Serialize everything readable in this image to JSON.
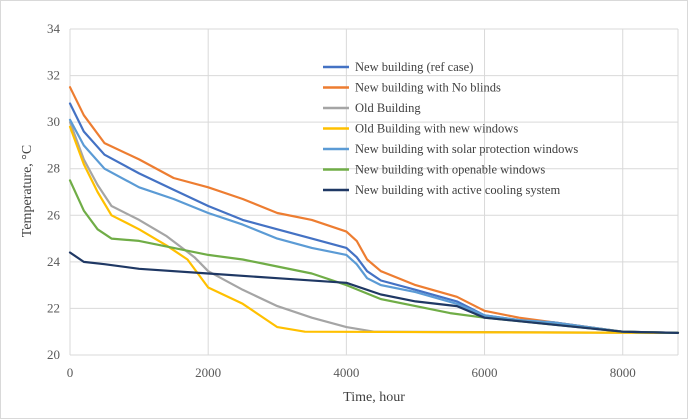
{
  "chart_data": {
    "type": "line",
    "title": "",
    "xlabel": "Time, hour",
    "ylabel": "Temperature, °C",
    "xlim": [
      0,
      8800
    ],
    "ylim": [
      20,
      34
    ],
    "xticks": [
      0,
      2000,
      4000,
      6000,
      8000
    ],
    "yticks": [
      20,
      22,
      24,
      26,
      28,
      30,
      32,
      34
    ],
    "grid": true,
    "legend_position": "top-right",
    "series": [
      {
        "name": "New building (ref case)",
        "color": "#4472C4",
        "points": [
          [
            0,
            30.8
          ],
          [
            200,
            29.6
          ],
          [
            500,
            28.6
          ],
          [
            1000,
            27.8
          ],
          [
            1500,
            27.1
          ],
          [
            2000,
            26.4
          ],
          [
            2500,
            25.8
          ],
          [
            3000,
            25.4
          ],
          [
            3500,
            25.0
          ],
          [
            4000,
            24.6
          ],
          [
            4150,
            24.2
          ],
          [
            4300,
            23.6
          ],
          [
            4500,
            23.2
          ],
          [
            5000,
            22.8
          ],
          [
            5600,
            22.3
          ],
          [
            6000,
            21.7
          ],
          [
            6500,
            21.5
          ],
          [
            7000,
            21.4
          ],
          [
            7500,
            21.2
          ],
          [
            8000,
            21.0
          ],
          [
            8800,
            20.95
          ]
        ]
      },
      {
        "name": "New building with No blinds",
        "color": "#ED7D31",
        "points": [
          [
            0,
            31.5
          ],
          [
            200,
            30.3
          ],
          [
            500,
            29.1
          ],
          [
            1000,
            28.4
          ],
          [
            1500,
            27.6
          ],
          [
            2000,
            27.2
          ],
          [
            2500,
            26.7
          ],
          [
            3000,
            26.1
          ],
          [
            3500,
            25.8
          ],
          [
            4000,
            25.3
          ],
          [
            4150,
            24.9
          ],
          [
            4300,
            24.1
          ],
          [
            4500,
            23.6
          ],
          [
            5000,
            23.0
          ],
          [
            5600,
            22.5
          ],
          [
            6000,
            21.9
          ],
          [
            6500,
            21.6
          ],
          [
            7000,
            21.4
          ],
          [
            7500,
            21.2
          ],
          [
            8000,
            21.0
          ],
          [
            8800,
            20.95
          ]
        ]
      },
      {
        "name": "Old Building",
        "color": "#A5A5A5",
        "points": [
          [
            0,
            30.0
          ],
          [
            200,
            28.4
          ],
          [
            400,
            27.3
          ],
          [
            600,
            26.4
          ],
          [
            1000,
            25.8
          ],
          [
            1400,
            25.1
          ],
          [
            1800,
            24.2
          ],
          [
            2000,
            23.6
          ],
          [
            2500,
            22.8
          ],
          [
            3000,
            22.1
          ],
          [
            3500,
            21.6
          ],
          [
            4000,
            21.2
          ],
          [
            4400,
            21.0
          ],
          [
            8800,
            20.95
          ]
        ]
      },
      {
        "name": "Old Building with new windows",
        "color": "#FFC000",
        "points": [
          [
            0,
            29.8
          ],
          [
            200,
            28.2
          ],
          [
            400,
            27.0
          ],
          [
            600,
            26.0
          ],
          [
            1000,
            25.4
          ],
          [
            1400,
            24.7
          ],
          [
            1700,
            24.1
          ],
          [
            2000,
            22.9
          ],
          [
            2500,
            22.2
          ],
          [
            3000,
            21.2
          ],
          [
            3400,
            21.0
          ],
          [
            8800,
            20.95
          ]
        ]
      },
      {
        "name": "New building with solar protection windows",
        "color": "#5B9BD5",
        "points": [
          [
            0,
            30.1
          ],
          [
            200,
            29.0
          ],
          [
            500,
            28.0
          ],
          [
            1000,
            27.2
          ],
          [
            1500,
            26.7
          ],
          [
            2000,
            26.1
          ],
          [
            2500,
            25.6
          ],
          [
            3000,
            25.0
          ],
          [
            3500,
            24.6
          ],
          [
            4000,
            24.3
          ],
          [
            4150,
            23.9
          ],
          [
            4300,
            23.3
          ],
          [
            4500,
            23.0
          ],
          [
            5000,
            22.7
          ],
          [
            5600,
            22.2
          ],
          [
            6000,
            21.7
          ],
          [
            6500,
            21.5
          ],
          [
            7000,
            21.4
          ],
          [
            7500,
            21.2
          ],
          [
            8000,
            21.0
          ],
          [
            8800,
            20.95
          ]
        ]
      },
      {
        "name": "New building with openable windows",
        "color": "#70AD47",
        "points": [
          [
            0,
            27.5
          ],
          [
            200,
            26.2
          ],
          [
            400,
            25.4
          ],
          [
            600,
            25.0
          ],
          [
            1000,
            24.9
          ],
          [
            1500,
            24.6
          ],
          [
            2000,
            24.3
          ],
          [
            2500,
            24.1
          ],
          [
            3000,
            23.8
          ],
          [
            3500,
            23.5
          ],
          [
            4000,
            23.0
          ],
          [
            4500,
            22.4
          ],
          [
            5000,
            22.1
          ],
          [
            5500,
            21.8
          ],
          [
            6000,
            21.6
          ],
          [
            7000,
            21.3
          ],
          [
            8000,
            21.0
          ],
          [
            8800,
            20.95
          ]
        ]
      },
      {
        "name": "New building with active cooling system",
        "color": "#1F3864",
        "points": [
          [
            0,
            24.4
          ],
          [
            200,
            24.0
          ],
          [
            500,
            23.9
          ],
          [
            1000,
            23.7
          ],
          [
            2000,
            23.5
          ],
          [
            3000,
            23.3
          ],
          [
            4000,
            23.1
          ],
          [
            4500,
            22.6
          ],
          [
            5000,
            22.3
          ],
          [
            5600,
            22.1
          ],
          [
            6000,
            21.6
          ],
          [
            7000,
            21.3
          ],
          [
            8000,
            21.0
          ],
          [
            8800,
            20.95
          ]
        ]
      }
    ]
  }
}
